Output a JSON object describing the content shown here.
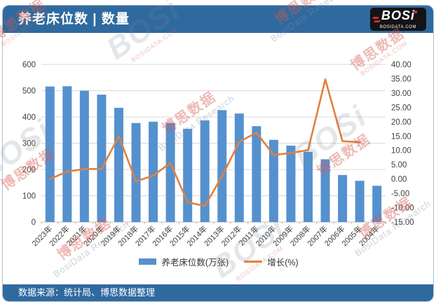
{
  "header": {
    "title": "养老床位数 | 数量",
    "logo_text": "BOSi",
    "logo_site": "BOSIDATA.COM"
  },
  "footer": {
    "source_text": "数据来源：统计局、博思数据整理"
  },
  "watermark": {
    "brand": "BOSi",
    "brand_cn": "博思数据",
    "brand_en": "BosiData Research",
    "site": "BOSIDATA.COM"
  },
  "colors": {
    "header_bg": "#2F6A9F",
    "bar": "#5591CF",
    "line": "#E2803E",
    "grid": "#D8D8D8",
    "axis_line": "#BFBFBF",
    "axis_text": "#404040",
    "logo_red": "#C4342B"
  },
  "legend": [
    {
      "label": "养老床位数(万张)",
      "type": "bar",
      "color": "#5591CF"
    },
    {
      "label": "增长(%)",
      "type": "line",
      "color": "#E2803E"
    }
  ],
  "chart_data": {
    "type": "bar",
    "subtype": "bar-line combo, dual axis",
    "title": "养老床位数 | 数量",
    "xlabel": "",
    "ylabel_left": "养老床位数(万张)",
    "ylabel_right": "增长(%)",
    "categories": [
      "2023年",
      "2022年",
      "2021年",
      "2020年",
      "2019年",
      "2018年",
      "2017年",
      "2016年",
      "2015年",
      "2014年",
      "2013年",
      "2012年",
      "2011年",
      "2010年",
      "2009年",
      "2008年",
      "2007年",
      "2006年",
      "2005年",
      "2004年"
    ],
    "series": [
      {
        "name": "养老床位数(万张)",
        "type": "bar",
        "axis": "left",
        "values": [
          516,
          517,
          500,
          485,
          435,
          377,
          382,
          377,
          355,
          387,
          426,
          413,
          365,
          313,
          291,
          267,
          239,
          179,
          157,
          138
        ]
      },
      {
        "name": "增长(%)",
        "type": "line",
        "axis": "right",
        "values": [
          0.0,
          2.6,
          3.5,
          3.5,
          15.0,
          -0.8,
          1.2,
          5.6,
          -8.1,
          -9.4,
          1.0,
          13.0,
          16.2,
          8.4,
          9.1,
          10.1,
          34.8,
          13.2,
          12.9,
          null
        ]
      }
    ],
    "left_axis": {
      "min": 0,
      "max": 600,
      "step": 100,
      "labels": [
        "0",
        "100",
        "200",
        "300",
        "400",
        "500",
        "600"
      ]
    },
    "right_axis": {
      "min": -15,
      "max": 40,
      "step": 5,
      "format": "two-decimals",
      "labels": [
        "-15.00",
        "-10.00",
        "-5.00",
        "0.00",
        "5.00",
        "10.00",
        "15.00",
        "20.00",
        "25.00",
        "30.00",
        "35.00",
        "40.00"
      ]
    },
    "grid": true,
    "legend_position": "bottom"
  }
}
